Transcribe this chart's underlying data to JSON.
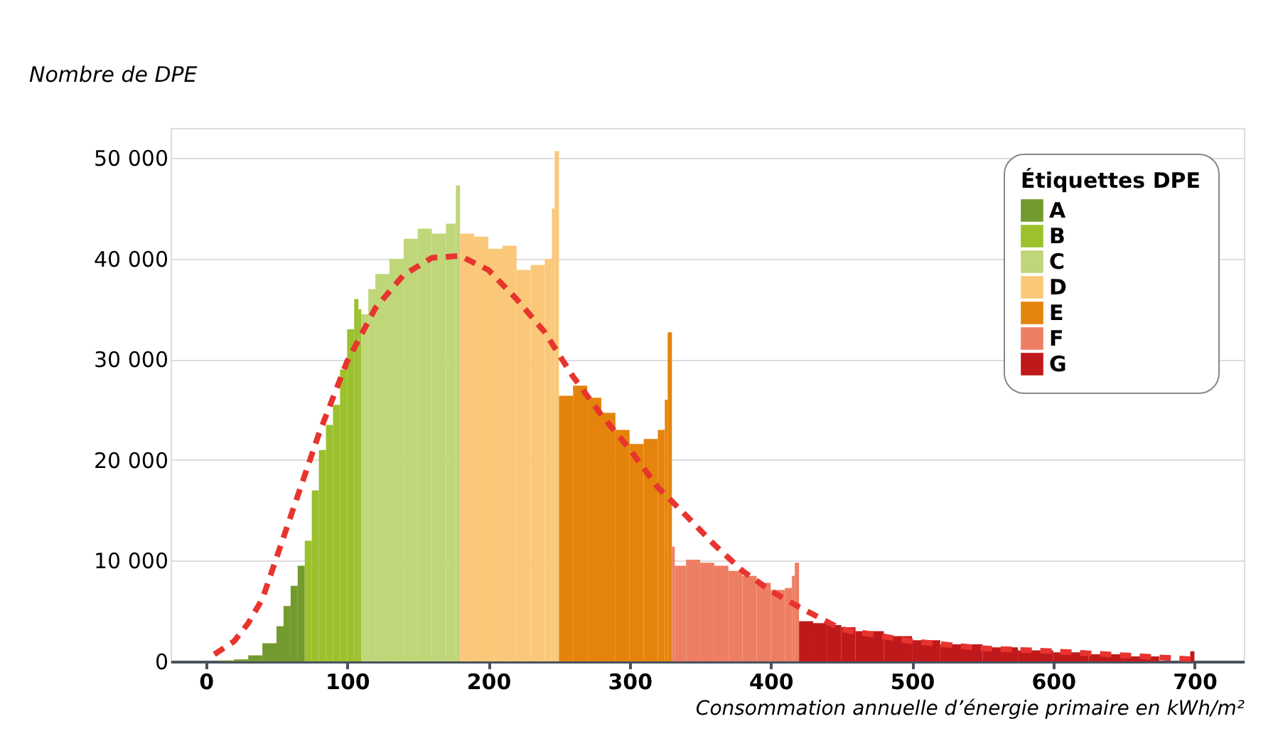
{
  "chart_data": {
    "type": "histogram",
    "xlabel": "Consommation annuelle d’énergie primaire en kWh/m²",
    "ylabel": "Nombre de DPE",
    "legend_title": "Étiquettes DPE",
    "xlim": [
      -25,
      735
    ],
    "xticks": [
      0,
      100,
      200,
      300,
      400,
      500,
      600,
      700
    ],
    "ylim": [
      0,
      53000
    ],
    "yticks": [
      {
        "value": 0,
        "label": "0"
      },
      {
        "value": 10000,
        "label": "10 000"
      },
      {
        "value": 20000,
        "label": "20 000"
      },
      {
        "value": 30000,
        "label": "30 000"
      },
      {
        "value": 40000,
        "label": "40 000"
      },
      {
        "value": 50000,
        "label": "50 000"
      }
    ],
    "grid": "y",
    "legend": "top right",
    "series": [
      {
        "name": "A",
        "color": "#739a2e",
        "bins": [
          10,
          20,
          30,
          40,
          50,
          55,
          60,
          65,
          70
        ],
        "values": [
          100,
          200,
          600,
          1800,
          3500,
          5500,
          7500,
          9500
        ]
      },
      {
        "name": "B",
        "color": "#9bc12c",
        "bins": [
          70,
          75,
          80,
          85,
          90,
          95,
          100,
          105,
          108,
          110
        ],
        "values": [
          12000,
          17000,
          21000,
          23500,
          25500,
          29000,
          33000,
          36000,
          35000
        ]
      },
      {
        "name": "C",
        "color": "#bfd679",
        "bins": [
          110,
          115,
          120,
          130,
          140,
          150,
          160,
          170,
          177,
          180
        ],
        "values": [
          34500,
          37000,
          38500,
          40000,
          42000,
          43000,
          42500,
          43500,
          47300
        ]
      },
      {
        "name": "D",
        "color": "#fac878",
        "bins": [
          180,
          190,
          200,
          210,
          220,
          230,
          240,
          245,
          247,
          250
        ],
        "values": [
          42500,
          42200,
          41000,
          41300,
          38900,
          39400,
          40000,
          45000,
          50700
        ]
      },
      {
        "name": "E",
        "color": "#e4840c",
        "bins": [
          250,
          260,
          270,
          280,
          290,
          300,
          310,
          320,
          325,
          327,
          330
        ],
        "values": [
          26400,
          27400,
          26200,
          24700,
          23000,
          21600,
          22100,
          23000,
          26000,
          32700
        ]
      },
      {
        "name": "F",
        "color": "#ee7e63",
        "bins": [
          330,
          332,
          340,
          350,
          360,
          370,
          380,
          390,
          400,
          410,
          415,
          417,
          420
        ],
        "values": [
          11400,
          9500,
          10100,
          9800,
          9500,
          9000,
          8500,
          7800,
          7100,
          7300,
          8500,
          9800
        ]
      },
      {
        "name": "G",
        "color": "#c0191b",
        "bins": [
          420,
          430,
          440,
          450,
          460,
          480,
          500,
          520,
          550,
          575,
          600,
          625,
          650,
          675,
          697,
          700
        ],
        "values": [
          4000,
          3800,
          3600,
          3400,
          3000,
          2500,
          2100,
          1700,
          1400,
          1100,
          900,
          700,
          500,
          null,
          1000
        ]
      },
      {
        "type": "line",
        "color": "#e8342e",
        "line_style": "dashed",
        "marker": "none",
        "x": [
          6,
          20,
          30,
          40,
          60,
          80,
          100,
          120,
          140,
          160,
          180,
          200,
          220,
          240,
          260,
          280,
          300,
          320,
          340,
          360,
          380,
          400,
          420,
          450,
          500,
          550,
          600,
          650,
          700
        ],
        "values": [
          700,
          2000,
          3800,
          6200,
          14400,
          22600,
          29800,
          35100,
          38400,
          40100,
          40300,
          38900,
          36000,
          32700,
          28300,
          24500,
          21100,
          17300,
          14500,
          11600,
          9000,
          7000,
          5400,
          3200,
          2000,
          1300,
          1000,
          600,
          200
        ]
      }
    ]
  }
}
